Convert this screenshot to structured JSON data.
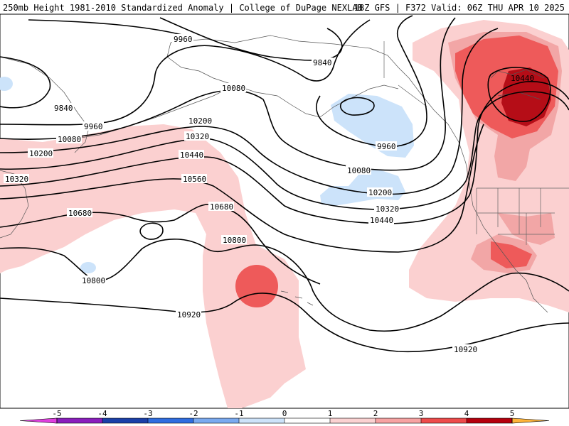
{
  "header": {
    "left": "250mb Height 1981-2010 Standardized Anomaly | College of DuPage NEXLAB",
    "right": "18Z GFS | F372 Valid: 06Z THU APR 10 2025"
  },
  "legend": {
    "ticks": [
      "-5",
      "-4",
      "-3",
      "-2",
      "-1",
      "0",
      "1",
      "2",
      "3",
      "4",
      "5"
    ],
    "colors": [
      "#e040e0",
      "#8a1dbd",
      "#1a3fa8",
      "#2f6de0",
      "#7aaaf0",
      "#cde3fa",
      "#ffffff",
      "#fbd2d2",
      "#f7a3a3",
      "#ee4b4b",
      "#b5000d",
      "#f58a00",
      "#ffb43a"
    ]
  },
  "anomaly_colors": {
    "minus1": "#cce3fa",
    "plus1": "#fbd0d0",
    "plus2": "#f2a6a6",
    "plus3": "#ee5a5a",
    "plus4": "#b50d17"
  },
  "contour_labels": [
    {
      "id": "9960-nw",
      "text": "9960"
    },
    {
      "id": "9840-ak",
      "text": "9840"
    },
    {
      "id": "10080-ak",
      "text": "10080"
    },
    {
      "id": "10440-ca",
      "text": "10440"
    },
    {
      "id": "9840-w",
      "text": "9840"
    },
    {
      "id": "9960-w",
      "text": "9960"
    },
    {
      "id": "10080-w",
      "text": "10080"
    },
    {
      "id": "10200-w",
      "text": "10200"
    },
    {
      "id": "10320-w",
      "text": "10320"
    },
    {
      "id": "10200-c",
      "text": "10200"
    },
    {
      "id": "10320-c",
      "text": "10320"
    },
    {
      "id": "10440-c",
      "text": "10440"
    },
    {
      "id": "10560-c",
      "text": "10560"
    },
    {
      "id": "10680-w",
      "text": "10680"
    },
    {
      "id": "10680-c",
      "text": "10680"
    },
    {
      "id": "10800-c",
      "text": "10800"
    },
    {
      "id": "10800-w",
      "text": "10800"
    },
    {
      "id": "10920-c",
      "text": "10920"
    },
    {
      "id": "10920-e",
      "text": "10920"
    },
    {
      "id": "9960-gulf",
      "text": "9960"
    },
    {
      "id": "10080-gulf",
      "text": "10080"
    },
    {
      "id": "10200-gulf",
      "text": "10200"
    },
    {
      "id": "10320-gulf",
      "text": "10320"
    },
    {
      "id": "10440-gulf",
      "text": "10440"
    }
  ]
}
